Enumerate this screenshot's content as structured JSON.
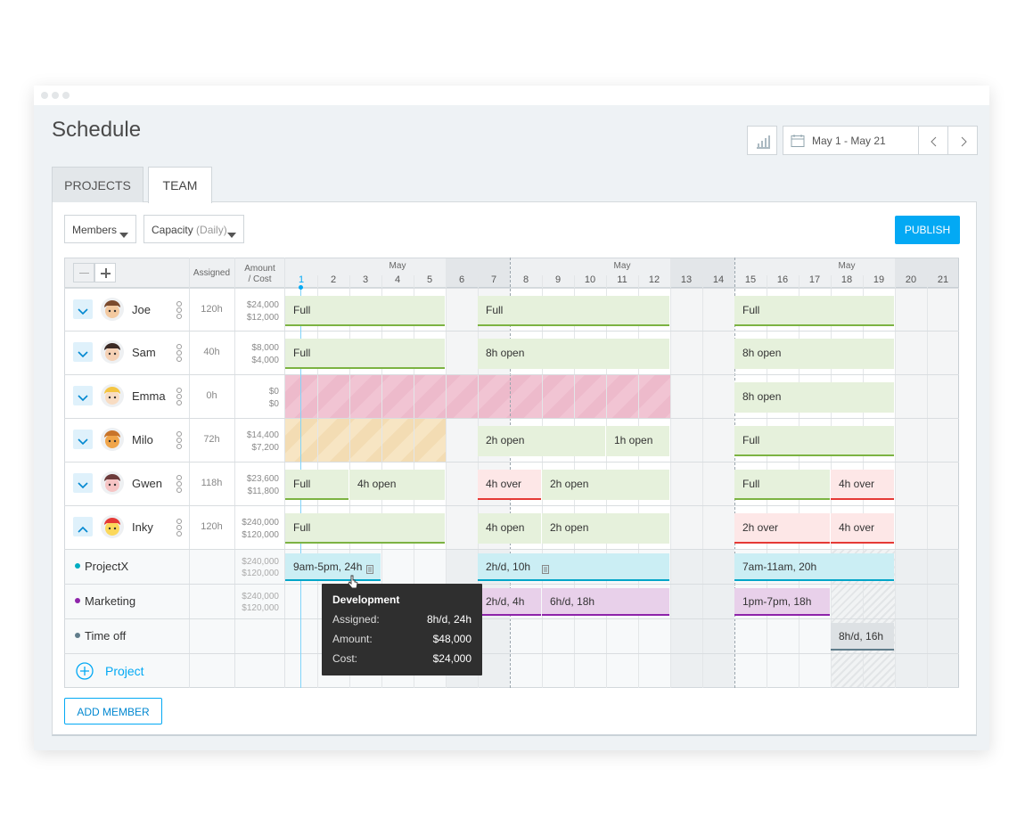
{
  "header": {
    "title": "Schedule",
    "date_range": "May 1 - May 21"
  },
  "tabs": [
    "PROJECTS",
    "TEAM"
  ],
  "toolbar": {
    "members": "Members",
    "capacity": "Capacity",
    "capacity_mode": "(Daily)",
    "publish": "PUBLISH"
  },
  "grid": {
    "columns": {
      "assigned": "Assigned",
      "amount": "Amount",
      "cost": "/ Cost"
    },
    "months": [
      "May",
      "May",
      "May"
    ],
    "days": [
      1,
      2,
      3,
      4,
      5,
      6,
      7,
      8,
      9,
      10,
      11,
      12,
      13,
      14,
      15,
      16,
      17,
      18,
      19,
      20,
      21
    ],
    "members": [
      {
        "name": "Joe",
        "assigned": "120h",
        "amount": "$24,000",
        "cost": "$12,000",
        "bars": [
          "Full",
          "Full",
          "Full"
        ]
      },
      {
        "name": "Sam",
        "assigned": "40h",
        "amount": "$8,000",
        "cost": "$4,000",
        "bars": [
          "Full",
          "8h open",
          "8h open"
        ]
      },
      {
        "name": "Emma",
        "assigned": "0h",
        "amount": "$0",
        "cost": "$0",
        "bars": [
          "8h open"
        ]
      },
      {
        "name": "Milo",
        "assigned": "72h",
        "amount": "$14,400",
        "cost": "$7,200",
        "bars": [
          "2h open",
          "1h open",
          "Full"
        ]
      },
      {
        "name": "Gwen",
        "assigned": "118h",
        "amount": "$23,600",
        "cost": "$11,800",
        "bars": [
          "Full",
          "4h open",
          "4h over",
          "2h open",
          "Full",
          "4h over"
        ]
      },
      {
        "name": "Inky",
        "assigned": "120h",
        "amount": "$240,000",
        "cost": "$120,000",
        "bars": [
          "Full",
          "4h open",
          "2h open",
          "2h over",
          "4h over"
        ]
      }
    ],
    "projects": [
      {
        "name": "ProjectX",
        "amount": "$240,000",
        "cost": "$120,000",
        "bars": [
          "9am-5pm, 24h",
          "2h/d, 10h",
          "7am-11am, 20h"
        ]
      },
      {
        "name": "Marketing",
        "amount": "$240,000",
        "cost": "$120,000",
        "bars": [
          "2h/d, 4h",
          "6h/d, 18h",
          "1pm-7pm, 18h"
        ]
      },
      {
        "name": "Time off",
        "bars": [
          "8h/d, 16h"
        ]
      }
    ],
    "add_project": "Project"
  },
  "tooltip": {
    "title": "Development",
    "rows": [
      [
        "Assigned:",
        "8h/d, 24h"
      ],
      [
        "Amount:",
        "$48,000"
      ],
      [
        "Cost:",
        "$24,000"
      ]
    ]
  },
  "add_member": "ADD MEMBER"
}
